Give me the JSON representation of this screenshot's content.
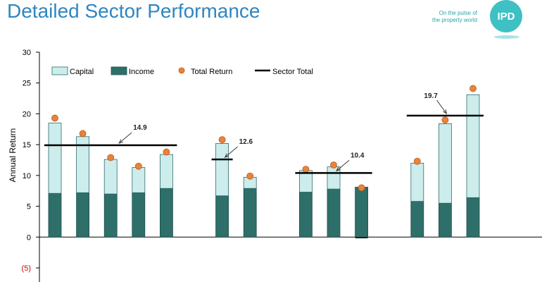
{
  "header": {
    "title": "Detailed Sector Performance",
    "tagline_line1": "On the pulse of",
    "tagline_line2": "the property world",
    "logo_text": "IPD"
  },
  "colors": {
    "capital": "#cdecec",
    "income": "#2e6f6a",
    "total_return": "#e8833a",
    "sector_total": "#000000",
    "title": "#2e86c1",
    "negative_tick": "#cc0000"
  },
  "chart_data": {
    "type": "bar",
    "stacked": true,
    "ylabel": "Annual Return",
    "xlabel": "",
    "ylim": [
      -5,
      30
    ],
    "yticks": [
      -5,
      0,
      5,
      10,
      15,
      20,
      25,
      30
    ],
    "ytick_labels": [
      "(5)",
      "0",
      "5",
      "10",
      "15",
      "20",
      "25",
      "30"
    ],
    "legend": {
      "position": "top",
      "entries": [
        "Capital",
        "Income",
        "Total Return",
        "Sector Total"
      ]
    },
    "bars": [
      {
        "slot": 0,
        "income": 7.1,
        "capital": 11.4,
        "total_return": 19.3
      },
      {
        "slot": 1,
        "income": 7.2,
        "capital": 9.1,
        "total_return": 16.8
      },
      {
        "slot": 2,
        "income": 7.0,
        "capital": 5.6,
        "total_return": 12.9
      },
      {
        "slot": 3,
        "income": 7.2,
        "capital": 4.1,
        "total_return": 11.5
      },
      {
        "slot": 4,
        "income": 7.9,
        "capital": 5.5,
        "total_return": 13.8
      },
      {
        "slot": 6,
        "income": 6.7,
        "capital": 8.5,
        "total_return": 15.8
      },
      {
        "slot": 7,
        "income": 7.9,
        "capital": 1.8,
        "total_return": 9.9
      },
      {
        "slot": 9,
        "income": 7.3,
        "capital": 3.5,
        "total_return": 11.0
      },
      {
        "slot": 10,
        "income": 7.8,
        "capital": 3.6,
        "total_return": 11.7
      },
      {
        "slot": 11,
        "income": 8.1,
        "capital": -0.2,
        "total_return": 8.0
      },
      {
        "slot": 13,
        "income": 5.8,
        "capital": 6.2,
        "total_return": 12.3
      },
      {
        "slot": 14,
        "income": 5.5,
        "capital": 12.9,
        "total_return": 19.0
      },
      {
        "slot": 15,
        "income": 6.4,
        "capital": 16.7,
        "total_return": 24.1
      }
    ],
    "sector_totals": [
      {
        "value": 14.9,
        "label": "14.9",
        "from_slot": 0,
        "to_slot": 4
      },
      {
        "value": 12.6,
        "label": "12.6",
        "from_slot": 6,
        "to_slot": 6
      },
      {
        "value": 10.4,
        "label": "10.4",
        "from_slot": 9,
        "to_slot": 11
      },
      {
        "value": 19.7,
        "label": "19.7",
        "from_slot": 13,
        "to_slot": 15
      }
    ]
  }
}
